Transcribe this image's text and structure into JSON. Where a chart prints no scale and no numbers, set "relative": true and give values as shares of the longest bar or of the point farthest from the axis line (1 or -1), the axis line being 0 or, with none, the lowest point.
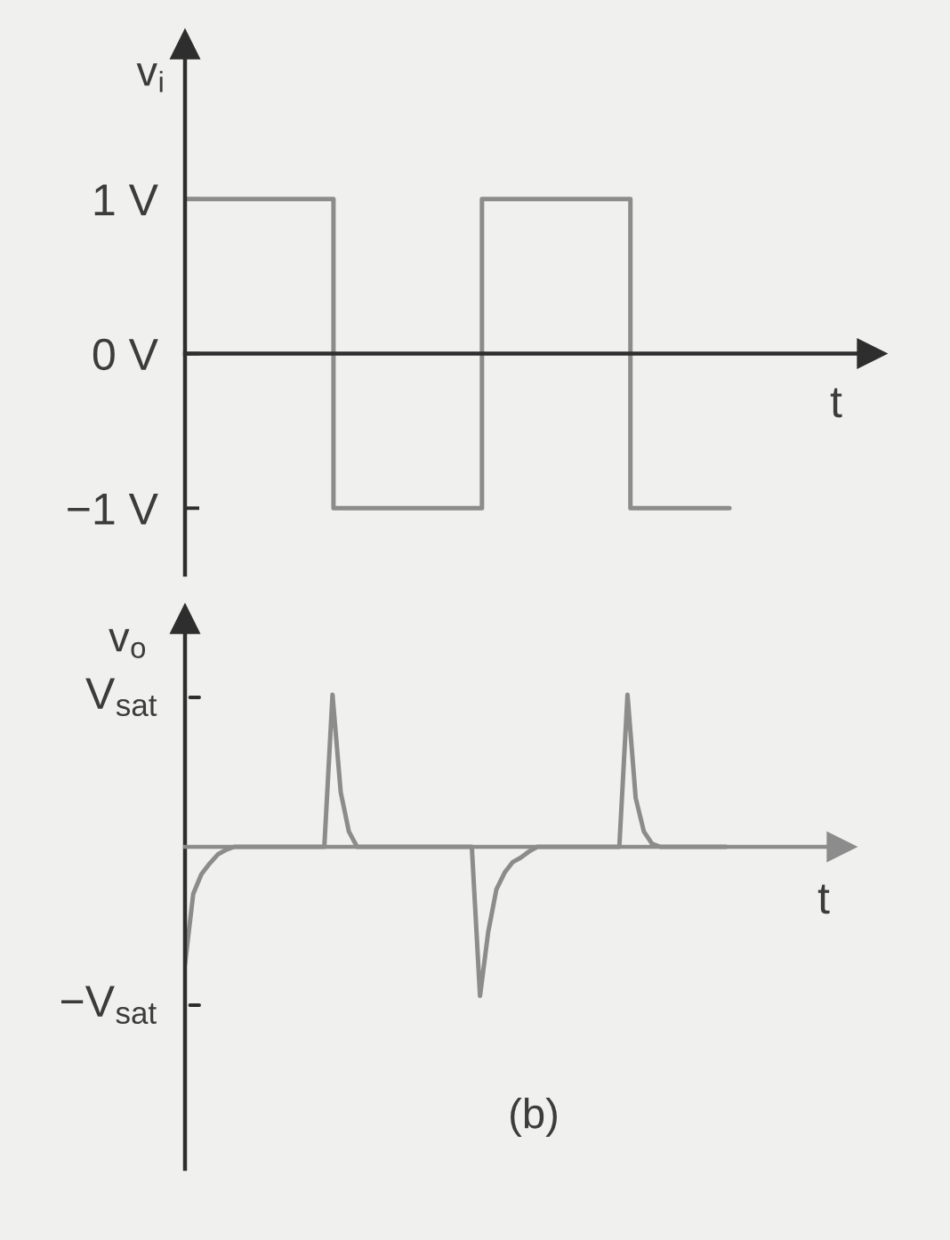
{
  "chart_data": [
    {
      "type": "step",
      "categories": [
        null,
        null,
        null,
        null,
        null,
        null,
        null,
        null,
        null,
        null,
        null,
        null
      ],
      "values": [
        1,
        1,
        1,
        -1,
        -1,
        -1,
        1,
        1,
        1,
        -1,
        -1,
        -1
      ],
      "color": "#8c8c8c",
      "xlabel": "t",
      "ylabel": "v$_{i}$",
      "ylim": [
        -1.43,
        2.0
      ],
      "yticks": [
        {
          "value": 1,
          "label": "1 V"
        },
        {
          "value": 0,
          "label": "0 V"
        },
        {
          "value": -1,
          "label": "−1 V"
        }
      ]
    },
    {
      "type": "line",
      "relative": true,
      "categories": [
        null,
        null,
        null,
        null,
        null,
        null,
        null,
        null,
        null,
        null,
        null,
        null,
        null,
        null,
        null,
        null,
        null,
        null,
        null,
        null,
        null,
        null,
        null,
        null,
        null,
        null,
        null,
        null,
        null,
        null,
        null,
        null,
        null,
        null,
        null,
        null,
        null,
        null,
        null,
        null,
        null,
        null,
        null,
        null,
        null,
        null,
        null,
        null,
        null,
        null,
        null,
        null,
        null,
        null,
        null,
        null,
        null,
        null,
        null,
        null,
        null,
        null,
        null,
        null,
        null,
        null,
        null
      ],
      "values": [
        -0.77,
        -0.31,
        -0.18,
        -0.11,
        -0.05,
        -0.02,
        0,
        0,
        0,
        0,
        0,
        0,
        0,
        0,
        0,
        0,
        0,
        0,
        1,
        0.36,
        0.1,
        0,
        0,
        0,
        0,
        0,
        0,
        0,
        0,
        0,
        0,
        0,
        0,
        0,
        0,
        0,
        -0.98,
        -0.56,
        -0.28,
        -0.17,
        -0.1,
        -0.07,
        -0.03,
        0,
        0,
        0,
        0,
        0,
        0,
        0,
        0,
        0,
        0,
        0,
        1,
        0.32,
        0.1,
        0.02,
        0,
        0,
        0,
        0,
        0,
        0,
        0,
        0,
        0
      ],
      "color": "#8c8c8c",
      "xlabel": "t",
      "ylabel": "v$_{o}$",
      "annotations": [
        "V$_{sat}$",
        "−V$_{sat}$",
        "(b)"
      ]
    }
  ]
}
